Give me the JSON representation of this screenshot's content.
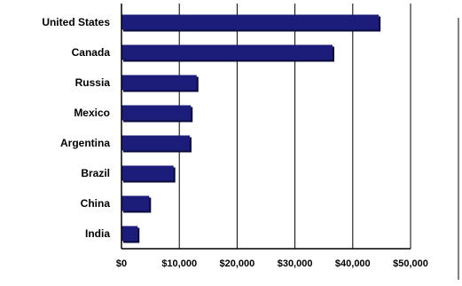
{
  "chart_data": {
    "type": "bar",
    "orientation": "horizontal",
    "categories": [
      "United States",
      "Canada",
      "Russia",
      "Mexico",
      "Argentina",
      "Brazil",
      "China",
      "India"
    ],
    "values": [
      44500,
      36500,
      13000,
      12000,
      11800,
      9000,
      4800,
      2800
    ],
    "xlim": [
      0,
      50000
    ],
    "xticks": [
      "$0",
      "$10,000",
      "$20,000",
      "$30,000",
      "$40,000",
      "$50,000"
    ],
    "title": "",
    "xlabel": "",
    "ylabel": "",
    "grid": "vertical",
    "legend": "none",
    "colors": {
      "bar": "#1c1c7a",
      "bar_shadow": "#0a0a3c",
      "grid": "#000000",
      "text": "#000000"
    }
  }
}
